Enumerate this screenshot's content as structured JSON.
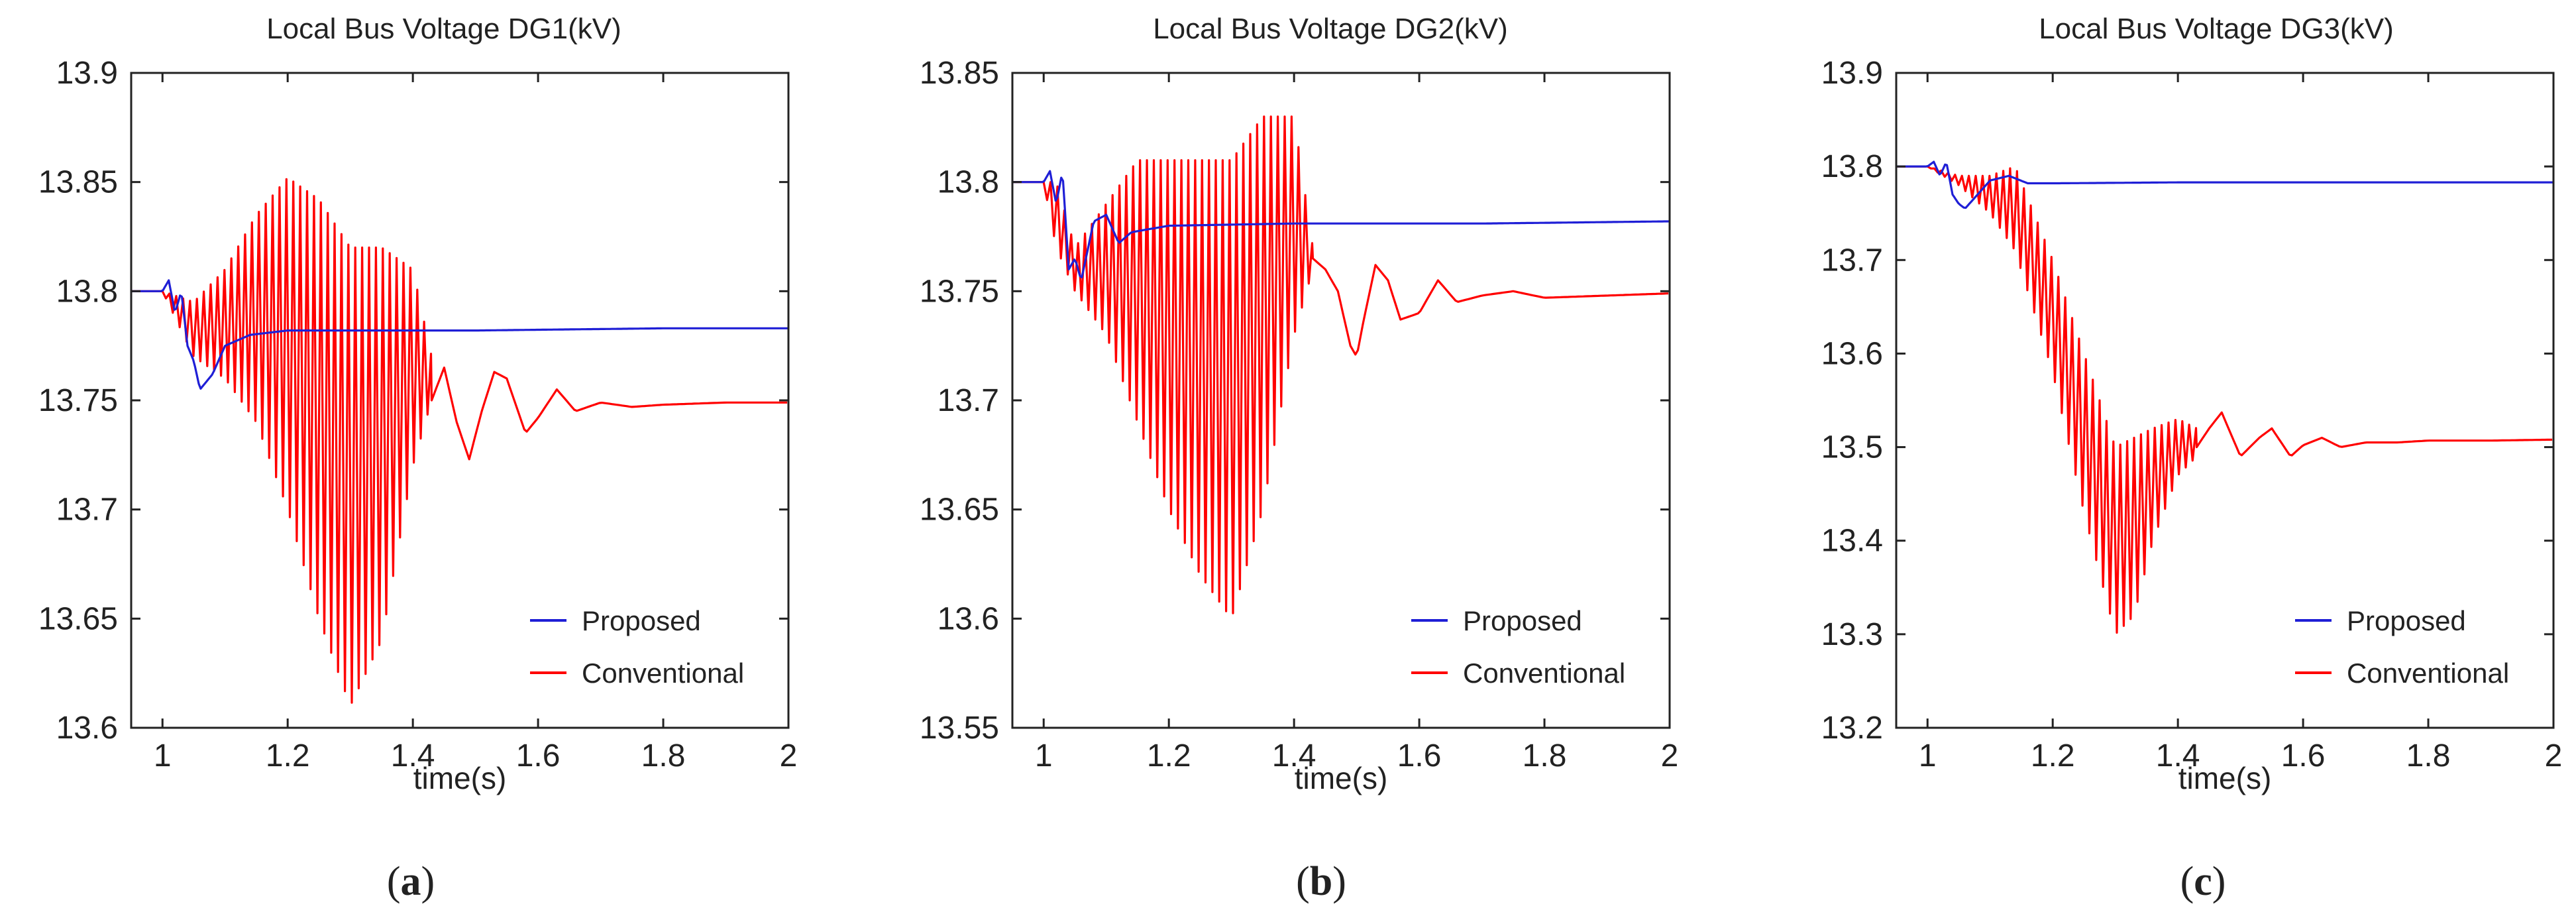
{
  "chart_data": [
    {
      "type": "line",
      "title": "Local Bus Voltage DG1(kV)",
      "xlabel": "time(s)",
      "ylabel": "",
      "xlim": [
        0.95,
        2.0
      ],
      "ylim": [
        13.6,
        13.9
      ],
      "xticks": [
        1,
        1.2,
        1.4,
        1.6,
        1.8,
        2
      ],
      "xtick_labels": [
        "1",
        "1.2",
        "1.4",
        "1.6",
        "1.8",
        "2"
      ],
      "yticks": [
        13.6,
        13.65,
        13.7,
        13.75,
        13.8,
        13.85,
        13.9
      ],
      "ytick_labels": [
        "13.6",
        "13.65",
        "13.7",
        "13.75",
        "13.8",
        "13.85",
        "13.9"
      ],
      "legend_position": "bottom-right",
      "caption": {
        "open": "(",
        "letter": "a",
        "close": ")"
      },
      "series": [
        {
          "name": "Proposed",
          "color": "#1f1fd6",
          "x": [
            0.95,
            1.0,
            1.01,
            1.02,
            1.03,
            1.04,
            1.05,
            1.06,
            1.08,
            1.1,
            1.14,
            1.2,
            1.3,
            1.5,
            1.8,
            2.0
          ],
          "y": [
            13.8,
            13.8,
            13.805,
            13.79,
            13.8,
            13.775,
            13.768,
            13.755,
            13.762,
            13.775,
            13.78,
            13.782,
            13.782,
            13.782,
            13.783,
            13.783
          ]
        },
        {
          "name": "Conventional",
          "color": "#ff0000",
          "envelope_x": [
            1.0,
            1.05,
            1.1,
            1.15,
            1.2,
            1.25,
            1.3,
            1.35,
            1.4,
            1.43
          ],
          "envelope_upper": [
            13.8,
            13.795,
            13.81,
            13.835,
            13.852,
            13.842,
            13.82,
            13.82,
            13.81,
            13.77
          ],
          "envelope_lower": [
            13.8,
            13.77,
            13.76,
            13.74,
            13.7,
            13.65,
            13.61,
            13.64,
            13.72,
            13.75
          ],
          "oscillation_period": 0.011,
          "x": [
            1.43,
            1.45,
            1.47,
            1.49,
            1.51,
            1.53,
            1.55,
            1.58,
            1.6,
            1.63,
            1.66,
            1.7,
            1.75,
            1.8,
            1.9,
            2.0
          ],
          "y": [
            13.75,
            13.765,
            13.74,
            13.723,
            13.745,
            13.763,
            13.76,
            13.735,
            13.742,
            13.755,
            13.745,
            13.749,
            13.747,
            13.748,
            13.749,
            13.749
          ]
        }
      ]
    },
    {
      "type": "line",
      "title": "Local Bus Voltage DG2(kV)",
      "xlabel": "time(s)",
      "ylabel": "",
      "xlim": [
        0.95,
        2.0
      ],
      "ylim": [
        13.55,
        13.85
      ],
      "xticks": [
        1,
        1.2,
        1.4,
        1.6,
        1.8,
        2
      ],
      "xtick_labels": [
        "1",
        "1.2",
        "1.4",
        "1.6",
        "1.8",
        "2"
      ],
      "yticks": [
        13.55,
        13.6,
        13.65,
        13.7,
        13.75,
        13.8,
        13.85
      ],
      "ytick_labels": [
        "13.55",
        "13.6",
        "13.65",
        "13.7",
        "13.75",
        "13.8",
        "13.85"
      ],
      "legend_position": "bottom-right",
      "caption": {
        "open": "(",
        "letter": "b",
        "close": ")"
      },
      "series": [
        {
          "name": "Proposed",
          "color": "#1f1fd6",
          "x": [
            0.95,
            1.0,
            1.01,
            1.02,
            1.03,
            1.04,
            1.05,
            1.06,
            1.08,
            1.1,
            1.12,
            1.14,
            1.2,
            1.4,
            1.7,
            2.0
          ],
          "y": [
            13.8,
            13.8,
            13.805,
            13.79,
            13.805,
            13.76,
            13.765,
            13.755,
            13.782,
            13.785,
            13.772,
            13.777,
            13.78,
            13.781,
            13.781,
            13.782
          ]
        },
        {
          "name": "Conventional",
          "color": "#ff0000",
          "envelope_x": [
            1.0,
            1.02,
            1.05,
            1.1,
            1.15,
            1.2,
            1.25,
            1.3,
            1.35,
            1.4,
            1.43
          ],
          "envelope_upper": [
            13.8,
            13.8,
            13.77,
            13.79,
            13.81,
            13.81,
            13.81,
            13.81,
            13.83,
            13.83,
            13.77
          ],
          "envelope_lower": [
            13.8,
            13.77,
            13.75,
            13.73,
            13.69,
            13.65,
            13.62,
            13.6,
            13.65,
            13.73,
            13.76
          ],
          "oscillation_period": 0.011,
          "x": [
            1.43,
            1.45,
            1.47,
            1.49,
            1.5,
            1.51,
            1.53,
            1.55,
            1.57,
            1.6,
            1.63,
            1.66,
            1.7,
            1.75,
            1.8,
            1.9,
            2.0
          ],
          "y": [
            13.765,
            13.76,
            13.75,
            13.725,
            13.72,
            13.735,
            13.762,
            13.755,
            13.737,
            13.74,
            13.755,
            13.745,
            13.748,
            13.75,
            13.747,
            13.748,
            13.749
          ]
        }
      ]
    },
    {
      "type": "line",
      "title": "Local Bus Voltage DG3(kV)",
      "xlabel": "time(s)",
      "ylabel": "",
      "xlim": [
        0.95,
        2.0
      ],
      "ylim": [
        13.2,
        13.9
      ],
      "xticks": [
        1,
        1.2,
        1.4,
        1.6,
        1.8,
        2
      ],
      "xtick_labels": [
        "1",
        "1.2",
        "1.4",
        "1.6",
        "1.8",
        "2"
      ],
      "yticks": [
        13.2,
        13.3,
        13.4,
        13.5,
        13.6,
        13.7,
        13.8,
        13.9
      ],
      "ytick_labels": [
        "13.2",
        "13.3",
        "13.4",
        "13.5",
        "13.6",
        "13.7",
        "13.8",
        "13.9"
      ],
      "legend_position": "bottom-right",
      "caption": {
        "open": "(",
        "letter": "c",
        "close": ")"
      },
      "series": [
        {
          "name": "Proposed",
          "color": "#1f1fd6",
          "x": [
            0.95,
            1.0,
            1.01,
            1.02,
            1.03,
            1.04,
            1.05,
            1.06,
            1.08,
            1.1,
            1.13,
            1.16,
            1.2,
            1.4,
            1.7,
            2.0
          ],
          "y": [
            13.8,
            13.8,
            13.805,
            13.79,
            13.805,
            13.77,
            13.76,
            13.755,
            13.77,
            13.785,
            13.79,
            13.782,
            13.782,
            13.783,
            13.783,
            13.783
          ]
        },
        {
          "name": "Conventional",
          "color": "#ff0000",
          "envelope_x": [
            1.0,
            1.05,
            1.1,
            1.14,
            1.2,
            1.25,
            1.3,
            1.33,
            1.36,
            1.4,
            1.43
          ],
          "envelope_upper": [
            13.8,
            13.79,
            13.79,
            13.8,
            13.7,
            13.6,
            13.5,
            13.51,
            13.52,
            13.53,
            13.52
          ],
          "envelope_lower": [
            13.8,
            13.78,
            13.75,
            13.71,
            13.58,
            13.43,
            13.3,
            13.32,
            13.4,
            13.47,
            13.49
          ],
          "oscillation_period": 0.011,
          "x": [
            1.43,
            1.45,
            1.47,
            1.5,
            1.53,
            1.55,
            1.58,
            1.6,
            1.63,
            1.66,
            1.7,
            1.75,
            1.8,
            1.9,
            2.0
          ],
          "y": [
            13.5,
            13.52,
            13.537,
            13.49,
            13.51,
            13.52,
            13.49,
            13.502,
            13.51,
            13.5,
            13.505,
            13.505,
            13.507,
            13.507,
            13.508
          ]
        }
      ]
    }
  ]
}
